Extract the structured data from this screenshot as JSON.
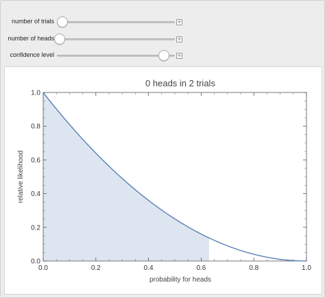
{
  "controls": [
    {
      "label": "number of trials",
      "value_fraction": 0.04
    },
    {
      "label": "number of heads",
      "value_fraction": 0.02
    },
    {
      "label": "confidence level",
      "value_fraction": 0.9
    }
  ],
  "plus_glyph": "+",
  "chart_data": {
    "type": "area",
    "title": "0 heads in 2 trials",
    "xlabel": "probability for heads",
    "ylabel": "relative likelihood",
    "xlim": [
      0,
      1
    ],
    "ylim": [
      0,
      1
    ],
    "x_ticks": [
      "0.0",
      "0.2",
      "0.4",
      "0.6",
      "0.8",
      "1.0"
    ],
    "y_ticks": [
      "0.0",
      "0.2",
      "0.4",
      "0.6",
      "0.8",
      "1.0"
    ],
    "curve_formula": "(1-p)^2",
    "shaded_interval": [
      0,
      0.63
    ],
    "line_color": "#5a7fb5",
    "fill_color": "#dde5f0"
  }
}
